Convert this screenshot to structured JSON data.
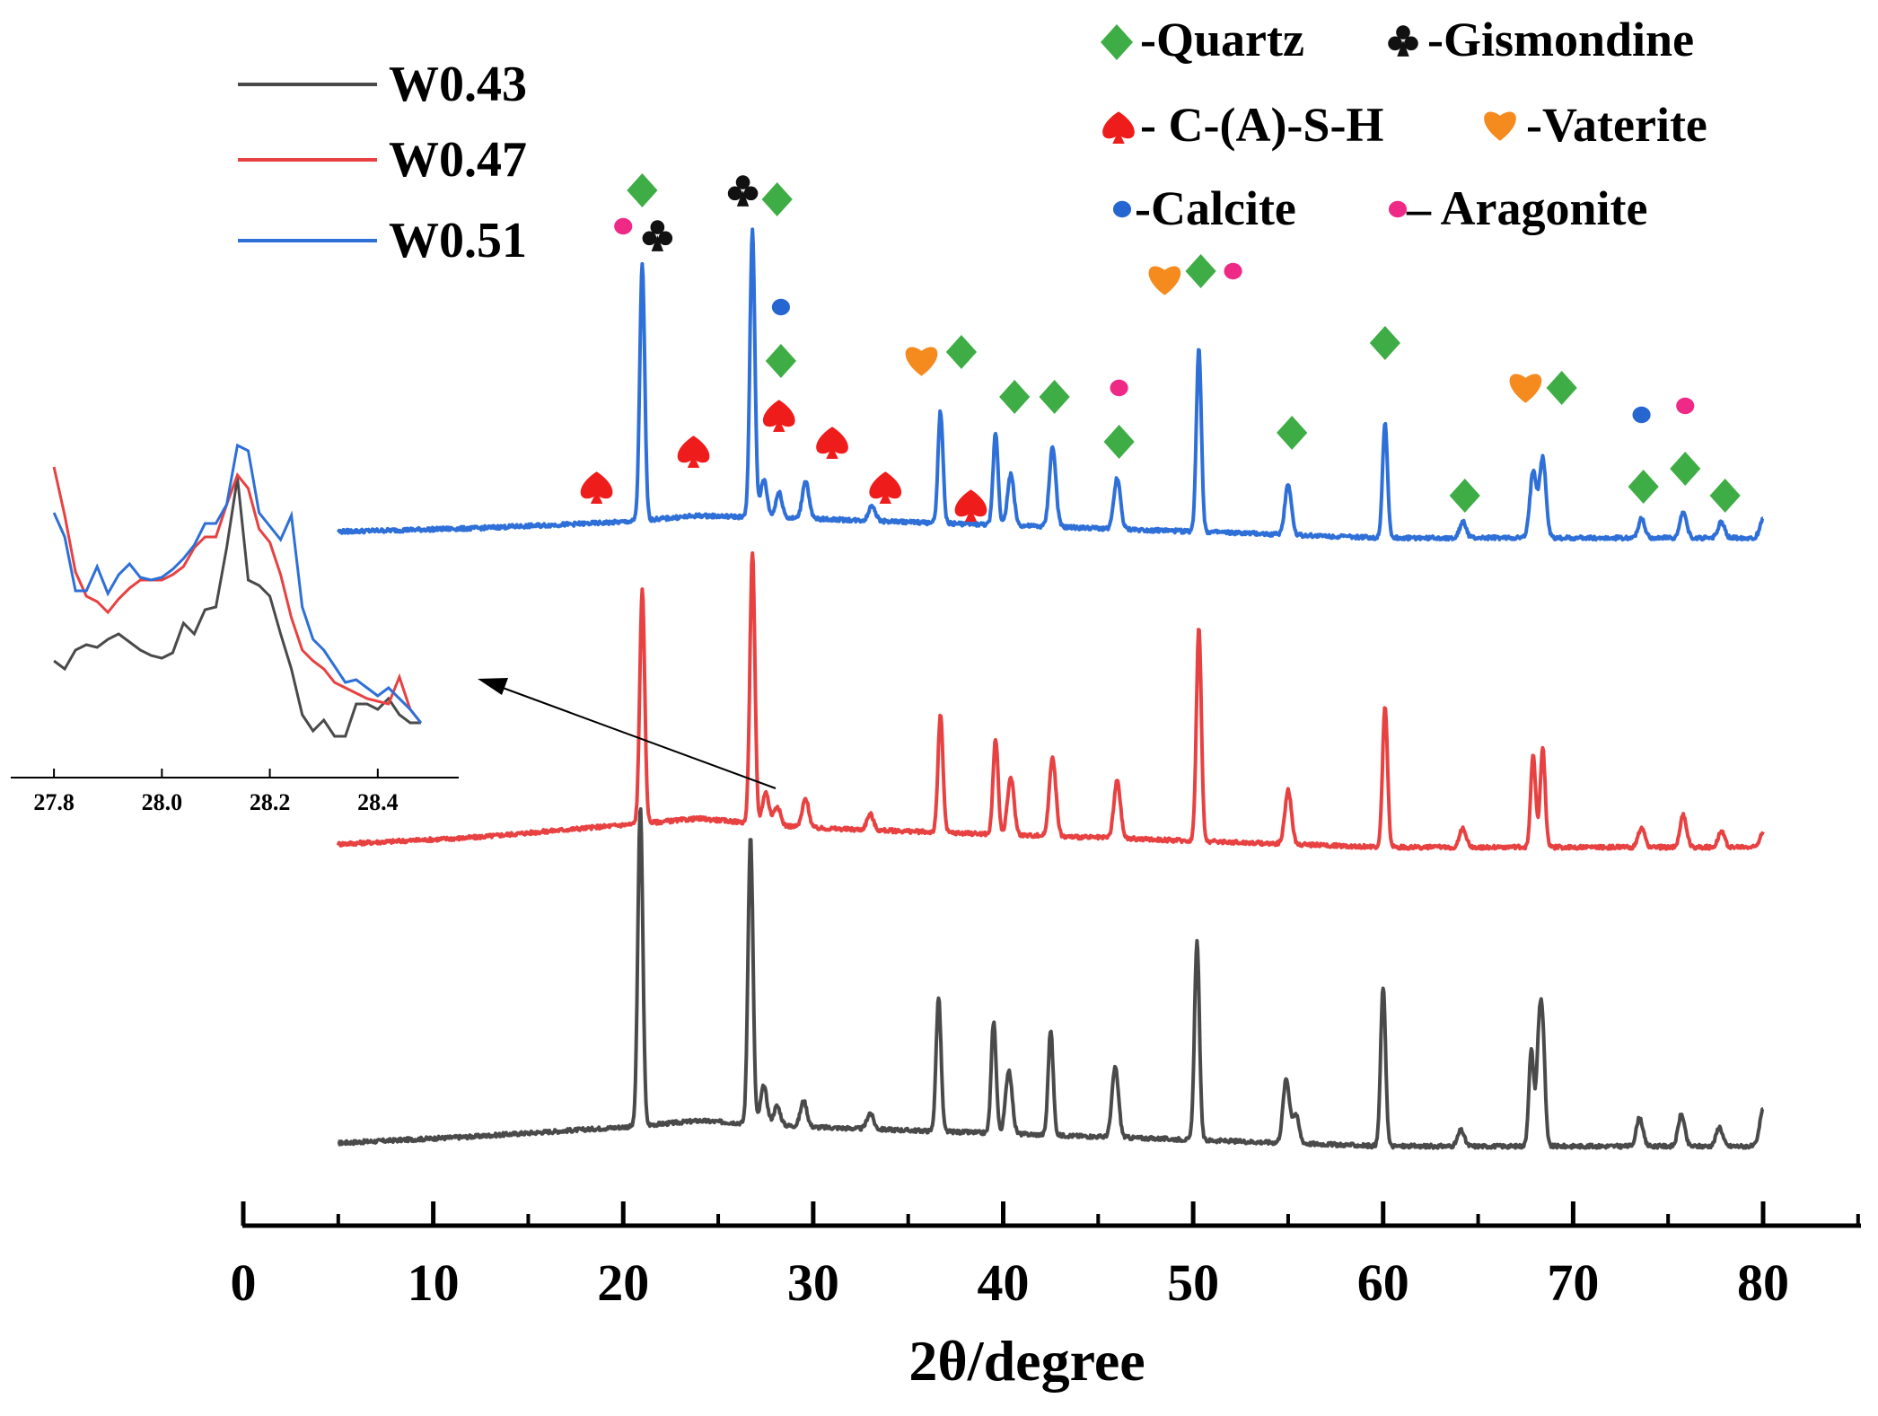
{
  "chart_data": {
    "type": "line",
    "title": "",
    "xlabel": "2θ/degree",
    "ylabel": "",
    "xlim": [
      0,
      85
    ],
    "x_ticks": [
      0,
      10,
      20,
      30,
      40,
      50,
      60,
      70,
      80
    ],
    "x_tick_labels": [
      "0",
      "10",
      "20",
      "30",
      "40",
      "50",
      "60",
      "70",
      "80"
    ],
    "grid": false,
    "series": [
      {
        "name": "W0.43",
        "color": "#4a4a4a",
        "offset": 0,
        "baseline": [
          [
            5,
            0.0
          ],
          [
            12,
            0.02
          ],
          [
            20,
            0.05
          ],
          [
            24,
            0.07
          ],
          [
            30,
            0.05
          ],
          [
            40,
            0.03
          ],
          [
            50,
            0.01
          ],
          [
            60,
            -0.01
          ],
          [
            70,
            -0.01
          ],
          [
            80,
            -0.01
          ]
        ],
        "peaks": [
          {
            "pos": 20.9,
            "height": 1.0
          },
          {
            "pos": 26.7,
            "height": 0.9
          },
          {
            "pos": 27.4,
            "height": 0.12
          },
          {
            "pos": 28.1,
            "height": 0.06
          },
          {
            "pos": 29.5,
            "height": 0.08
          },
          {
            "pos": 33.0,
            "height": 0.05
          },
          {
            "pos": 36.6,
            "height": 0.42
          },
          {
            "pos": 39.5,
            "height": 0.35
          },
          {
            "pos": 40.3,
            "height": 0.2
          },
          {
            "pos": 42.5,
            "height": 0.33
          },
          {
            "pos": 45.9,
            "height": 0.22
          },
          {
            "pos": 50.2,
            "height": 0.62
          },
          {
            "pos": 54.9,
            "height": 0.2
          },
          {
            "pos": 55.4,
            "height": 0.09
          },
          {
            "pos": 60.0,
            "height": 0.5
          },
          {
            "pos": 64.1,
            "height": 0.05
          },
          {
            "pos": 67.8,
            "height": 0.3
          },
          {
            "pos": 68.2,
            "height": 0.3
          },
          {
            "pos": 68.4,
            "height": 0.32
          },
          {
            "pos": 73.5,
            "height": 0.09
          },
          {
            "pos": 75.7,
            "height": 0.1
          },
          {
            "pos": 77.7,
            "height": 0.06
          },
          {
            "pos": 80.0,
            "height": 0.12
          }
        ]
      },
      {
        "name": "W0.47",
        "color": "#e84141",
        "offset": 1,
        "baseline": [
          [
            5,
            0.0
          ],
          [
            12,
            0.02
          ],
          [
            20,
            0.06
          ],
          [
            24,
            0.08
          ],
          [
            30,
            0.05
          ],
          [
            40,
            0.03
          ],
          [
            50,
            0.01
          ],
          [
            60,
            -0.01
          ],
          [
            70,
            -0.01
          ],
          [
            80,
            -0.01
          ]
        ],
        "peaks": [
          {
            "pos": 21.0,
            "height": 0.73
          },
          {
            "pos": 26.8,
            "height": 0.85
          },
          {
            "pos": 27.5,
            "height": 0.1
          },
          {
            "pos": 28.1,
            "height": 0.06
          },
          {
            "pos": 29.6,
            "height": 0.09
          },
          {
            "pos": 33.0,
            "height": 0.05
          },
          {
            "pos": 36.7,
            "height": 0.37
          },
          {
            "pos": 39.6,
            "height": 0.3
          },
          {
            "pos": 40.4,
            "height": 0.18
          },
          {
            "pos": 42.6,
            "height": 0.25
          },
          {
            "pos": 46.0,
            "height": 0.18
          },
          {
            "pos": 50.3,
            "height": 0.67
          },
          {
            "pos": 55.0,
            "height": 0.17
          },
          {
            "pos": 60.1,
            "height": 0.44
          },
          {
            "pos": 64.2,
            "height": 0.06
          },
          {
            "pos": 67.9,
            "height": 0.29
          },
          {
            "pos": 68.4,
            "height": 0.31
          },
          {
            "pos": 73.6,
            "height": 0.06
          },
          {
            "pos": 75.8,
            "height": 0.1
          },
          {
            "pos": 77.8,
            "height": 0.05
          },
          {
            "pos": 80.0,
            "height": 0.05
          }
        ]
      },
      {
        "name": "W0.51",
        "color": "#2e6fd8",
        "offset": 2,
        "baseline": [
          [
            5,
            0.0
          ],
          [
            12,
            0.01
          ],
          [
            20,
            0.03
          ],
          [
            24,
            0.05
          ],
          [
            30,
            0.04
          ],
          [
            40,
            0.02
          ],
          [
            50,
            0.0
          ],
          [
            60,
            -0.02
          ],
          [
            70,
            -0.02
          ],
          [
            80,
            -0.02
          ]
        ],
        "peaks": [
          {
            "pos": 21.0,
            "height": 0.8
          },
          {
            "pos": 26.8,
            "height": 0.9
          },
          {
            "pos": 27.4,
            "height": 0.12
          },
          {
            "pos": 28.2,
            "height": 0.08
          },
          {
            "pos": 29.6,
            "height": 0.12
          },
          {
            "pos": 33.1,
            "height": 0.05
          },
          {
            "pos": 36.7,
            "height": 0.35
          },
          {
            "pos": 39.6,
            "height": 0.29
          },
          {
            "pos": 40.4,
            "height": 0.16
          },
          {
            "pos": 42.6,
            "height": 0.25
          },
          {
            "pos": 46.0,
            "height": 0.16
          },
          {
            "pos": 50.3,
            "height": 0.58
          },
          {
            "pos": 55.0,
            "height": 0.16
          },
          {
            "pos": 60.1,
            "height": 0.36
          },
          {
            "pos": 64.2,
            "height": 0.05
          },
          {
            "pos": 67.9,
            "height": 0.21
          },
          {
            "pos": 68.4,
            "height": 0.25
          },
          {
            "pos": 73.6,
            "height": 0.06
          },
          {
            "pos": 75.8,
            "height": 0.08
          },
          {
            "pos": 77.8,
            "height": 0.05
          },
          {
            "pos": 80.0,
            "height": 0.06
          }
        ]
      }
    ],
    "phase_legend": [
      {
        "marker": "diamond",
        "color": "#3fad46",
        "label": "-Quartz"
      },
      {
        "marker": "club",
        "color": "#111111",
        "label": "-Gismondine"
      },
      {
        "marker": "spade",
        "color": "#ef1c1c",
        "label": "- C-(A)-S-H"
      },
      {
        "marker": "heart",
        "color": "#f58a1e",
        "label": "-Vaterite"
      },
      {
        "marker": "circle",
        "color": "#2566d0",
        "label": "-Calcite"
      },
      {
        "marker": "circle",
        "color": "#ee2a86",
        "label": "– Aragonite"
      }
    ],
    "peak_annotations": [
      {
        "marker": "diamond",
        "x": 21.0,
        "level": 0.38
      },
      {
        "marker": "circle-aragonite",
        "x": 20.0,
        "level": 0.34
      },
      {
        "marker": "club",
        "x": 21.8,
        "level": 0.33
      },
      {
        "marker": "club",
        "x": 26.3,
        "level": 0.38
      },
      {
        "marker": "diamond",
        "x": 28.1,
        "level": 0.37
      },
      {
        "marker": "circle-calcite",
        "x": 28.3,
        "level": 0.25
      },
      {
        "marker": "diamond",
        "x": 28.3,
        "level": 0.19
      },
      {
        "marker": "spade",
        "x": 18.6,
        "level": 0.05
      },
      {
        "marker": "spade",
        "x": 23.7,
        "level": 0.09
      },
      {
        "marker": "spade",
        "x": 28.2,
        "level": 0.13
      },
      {
        "marker": "spade",
        "x": 31.0,
        "level": 0.1
      },
      {
        "marker": "spade",
        "x": 33.8,
        "level": 0.05
      },
      {
        "marker": "spade",
        "x": 38.3,
        "level": 0.03
      },
      {
        "marker": "heart",
        "x": 35.7,
        "level": 0.19
      },
      {
        "marker": "diamond",
        "x": 37.8,
        "level": 0.2
      },
      {
        "marker": "diamond",
        "x": 40.6,
        "level": 0.15
      },
      {
        "marker": "diamond",
        "x": 42.7,
        "level": 0.15
      },
      {
        "marker": "circle-aragonite",
        "x": 46.1,
        "level": 0.16
      },
      {
        "marker": "diamond",
        "x": 46.1,
        "level": 0.1
      },
      {
        "marker": "heart",
        "x": 48.5,
        "level": 0.28
      },
      {
        "marker": "diamond",
        "x": 50.4,
        "level": 0.29
      },
      {
        "marker": "circle-aragonite",
        "x": 52.1,
        "level": 0.29
      },
      {
        "marker": "diamond",
        "x": 55.2,
        "level": 0.11
      },
      {
        "marker": "diamond",
        "x": 60.1,
        "level": 0.21
      },
      {
        "marker": "diamond",
        "x": 64.3,
        "level": 0.04
      },
      {
        "marker": "heart",
        "x": 67.5,
        "level": 0.16
      },
      {
        "marker": "diamond",
        "x": 69.4,
        "level": 0.16
      },
      {
        "marker": "circle-calcite",
        "x": 73.6,
        "level": 0.13
      },
      {
        "marker": "circle-aragonite",
        "x": 75.9,
        "level": 0.14
      },
      {
        "marker": "diamond",
        "x": 73.7,
        "level": 0.05
      },
      {
        "marker": "diamond",
        "x": 75.9,
        "level": 0.07
      },
      {
        "marker": "diamond",
        "x": 78.0,
        "level": 0.04
      }
    ],
    "inset": {
      "xlim": [
        27.72,
        28.55
      ],
      "x_ticks": [
        27.8,
        28.0,
        28.2,
        28.4
      ],
      "x_tick_labels": [
        "27.8",
        "28.0",
        "28.2",
        "28.4"
      ],
      "ylim": [
        0,
        1
      ],
      "series": [
        {
          "name": "W0.43",
          "color": "#4a4a4a",
          "x": [
            27.8,
            27.82,
            27.84,
            27.86,
            27.88,
            27.9,
            27.92,
            27.94,
            27.96,
            27.98,
            28.0,
            28.02,
            28.04,
            28.06,
            28.08,
            28.1,
            28.12,
            28.14,
            28.16,
            28.18,
            28.2,
            28.22,
            28.24,
            28.26,
            28.28,
            28.3,
            28.32,
            28.34,
            28.36,
            28.38,
            28.4,
            28.42,
            28.44,
            28.46,
            28.48
          ],
          "y": [
            0.28,
            0.25,
            0.32,
            0.34,
            0.33,
            0.36,
            0.38,
            0.35,
            0.32,
            0.3,
            0.29,
            0.31,
            0.42,
            0.38,
            0.47,
            0.48,
            0.7,
            0.96,
            0.58,
            0.56,
            0.52,
            0.38,
            0.25,
            0.08,
            0.02,
            0.06,
            0.0,
            0.0,
            0.12,
            0.12,
            0.1,
            0.14,
            0.08,
            0.05,
            0.05
          ]
        },
        {
          "name": "W0.47",
          "color": "#e84141",
          "x": [
            27.8,
            27.82,
            27.84,
            27.86,
            27.88,
            27.9,
            27.92,
            27.94,
            27.96,
            27.98,
            28.0,
            28.02,
            28.04,
            28.06,
            28.08,
            28.1,
            28.12,
            28.14,
            28.16,
            28.18,
            28.2,
            28.22,
            28.24,
            28.26,
            28.28,
            28.3,
            28.32,
            28.34,
            28.36,
            28.38,
            28.4,
            28.42,
            28.44,
            28.46,
            28.48
          ],
          "y": [
            1.0,
            0.82,
            0.61,
            0.52,
            0.5,
            0.46,
            0.51,
            0.55,
            0.58,
            0.58,
            0.58,
            0.6,
            0.63,
            0.7,
            0.74,
            0.74,
            0.86,
            0.97,
            0.92,
            0.77,
            0.72,
            0.6,
            0.44,
            0.32,
            0.28,
            0.25,
            0.2,
            0.18,
            0.16,
            0.14,
            0.13,
            0.12,
            0.22,
            0.1,
            0.05
          ]
        },
        {
          "name": "W0.51",
          "color": "#2e6fd8",
          "x": [
            27.8,
            27.82,
            27.84,
            27.86,
            27.88,
            27.9,
            27.92,
            27.94,
            27.96,
            27.98,
            28.0,
            28.02,
            28.04,
            28.06,
            28.08,
            28.1,
            28.12,
            28.14,
            28.16,
            28.18,
            28.2,
            28.22,
            28.24,
            28.26,
            28.28,
            28.3,
            28.32,
            28.34,
            28.36,
            28.38,
            28.4,
            28.42,
            28.44,
            28.46,
            28.48
          ],
          "y": [
            0.83,
            0.74,
            0.54,
            0.54,
            0.63,
            0.53,
            0.6,
            0.64,
            0.59,
            0.58,
            0.59,
            0.62,
            0.66,
            0.71,
            0.79,
            0.79,
            0.86,
            1.08,
            1.06,
            0.83,
            0.78,
            0.73,
            0.82,
            0.48,
            0.36,
            0.32,
            0.26,
            0.2,
            0.21,
            0.18,
            0.15,
            0.18,
            0.14,
            0.1,
            0.05
          ]
        }
      ]
    }
  }
}
